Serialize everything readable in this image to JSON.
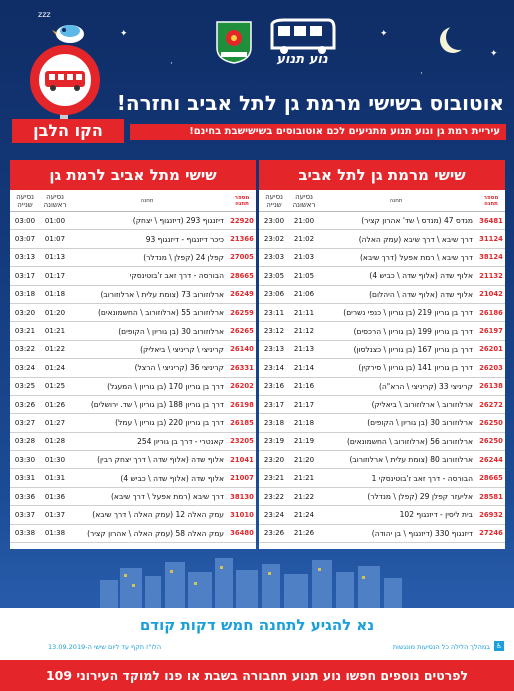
{
  "header": {
    "title": "אוטובוס בשישי מרמת גן לתל אביב וחזרה!",
    "subtitle": "עיריית רמת גן ונוע תנוע מתניעים לכם אוטובוסים בשישישבת בחינם!",
    "line_name": "הקו הלבן",
    "operator_logo_text": "נוע תנוע",
    "icons": [
      "moon-icon",
      "bird-icon",
      "bus-sign-icon",
      "ramat-gan-emblem"
    ]
  },
  "tables": {
    "right": {
      "title": "שישי מרמת גן לתל אביב",
      "col_num": "מספר תחנה",
      "col_stop": "תחנה",
      "col_first": "נסיעה ראשונה",
      "col_second": "נסיעה שנייה",
      "rows": [
        {
          "num": "36481",
          "stop": "מנדס 47 (מנדס \\ שד' אהרון קציר)",
          "t1": "21:00",
          "t2": "23:00"
        },
        {
          "num": "31124",
          "stop": "דרך שיבא \\ דרך שיבא (עמק האלה)",
          "t1": "21:02",
          "t2": "23:02"
        },
        {
          "num": "38124",
          "stop": "דרך שיבא \\ רמת אפעל (דרך שיבא)",
          "t1": "21:03",
          "t2": "23:03"
        },
        {
          "num": "21132",
          "stop": "אלוף שדה (אלוף שדה \\ כביש 4)",
          "t1": "21:05",
          "t2": "23:05"
        },
        {
          "num": "21042",
          "stop": "אלוף שדה (אלוף שדה \\ היהלום)",
          "t1": "21:06",
          "t2": "23:06"
        },
        {
          "num": "26186",
          "stop": "דרך בן גוריון 219 (בן גוריון \\ כנפי נשרים)",
          "t1": "21:11",
          "t2": "23:11"
        },
        {
          "num": "26197",
          "stop": "דרך בן גוריון 199 (בן גוריון \\ הרכסים)",
          "t1": "21:12",
          "t2": "23:12"
        },
        {
          "num": "26201",
          "stop": "דרך בן גוריון 167 (בן גוריון \\ כצנלסון)",
          "t1": "21:13",
          "t2": "23:13"
        },
        {
          "num": "26203",
          "stop": "דרך בן גוריון 141 (בן גוריון \\ סירקין)",
          "t1": "21:14",
          "t2": "23:14"
        },
        {
          "num": "26138",
          "stop": "קריניצי 33 (קריניצי \\ הרא\"ה)",
          "t1": "21:16",
          "t2": "23:16"
        },
        {
          "num": "26272",
          "stop": "ארלוזורוב \\ ארלוזורוב \\ ביאליק)",
          "t1": "21:17",
          "t2": "23:17"
        },
        {
          "num": "26250",
          "stop": "ארלוזורוב 30 (בן גוריון \\ הקופים)",
          "t1": "21:18",
          "t2": "23:18"
        },
        {
          "num": "26250",
          "stop": "ארלוזורוב 56 (ארלוזורוב \\ החשמונאים)",
          "t1": "21:19",
          "t2": "23:19"
        },
        {
          "num": "26244",
          "stop": "ארלוזורוב 80 (צומת עלית \\ ארלוזורוב)",
          "t1": "21:20",
          "t2": "23:20"
        },
        {
          "num": "28665",
          "stop": "הבורסה - דרך זאב ז'בוטינסקי 1",
          "t1": "21:21",
          "t2": "23:21"
        },
        {
          "num": "28581",
          "stop": "אליעזר קפלן 29 (קפלן \\ מנדלר)",
          "t1": "21:22",
          "t2": "23:22"
        },
        {
          "num": "26932",
          "stop": "בית ליסין - דיזנגוף 102",
          "t1": "21:24",
          "t2": "23:24"
        },
        {
          "num": "27246",
          "stop": "דיזנגוף 330 (דיזנגוף \\ בן יהודה)",
          "t1": "21:26",
          "t2": "23:26"
        }
      ]
    },
    "left": {
      "title": "שישי מתל אביב לרמת גן",
      "col_num": "מספר תחנה",
      "col_stop": "תחנה",
      "col_first": "נסיעה ראשונה",
      "col_second": "נסיעה שנייה",
      "rows": [
        {
          "num": "22920",
          "stop": "דיזנגוף 293 (דיזנגוף \\ יצחק)",
          "t1": "01:00",
          "t2": "03:00"
        },
        {
          "num": "21366",
          "stop": "כיכר דיזנגוף - דיזנגוף 93",
          "t1": "01:07",
          "t2": "03:07"
        },
        {
          "num": "27005",
          "stop": "קפלן 24 (קפלן \\ מנדלר)",
          "t1": "01:13",
          "t2": "03:13"
        },
        {
          "num": "28665",
          "stop": "הבורסה - דרך זאב ז'בוטינסקי",
          "t1": "01:17",
          "t2": "03:17"
        },
        {
          "num": "26249",
          "stop": "ארלוזורוב 73 (צומת עלית \\ ארלוזורוב)",
          "t1": "01:18",
          "t2": "03:18"
        },
        {
          "num": "26259",
          "stop": "ארלוזורוב 55 (ארלוזורוב \\ החשמונאים)",
          "t1": "01:20",
          "t2": "03:20"
        },
        {
          "num": "26265",
          "stop": "ארלוזורוב 30 (בן גוריון \\ הקופים)",
          "t1": "01:21",
          "t2": "03:21"
        },
        {
          "num": "26140",
          "stop": "קריניצי \\ קריניצי \\ ביאליק)",
          "t1": "01:22",
          "t2": "03:22"
        },
        {
          "num": "26331",
          "stop": "קריניצי 36 (קריניצי \\ הרצל)",
          "t1": "01:24",
          "t2": "03:24"
        },
        {
          "num": "26202",
          "stop": "דרך בן גוריון 170 (בן גוריון \\ המעגל)",
          "t1": "01:25",
          "t2": "03:25"
        },
        {
          "num": "26198",
          "stop": "דרך בן גוריון 188 (בן גוריון \\ שד. ירושלים)",
          "t1": "01:26",
          "t2": "03:26"
        },
        {
          "num": "26185",
          "stop": "דרך בן גוריון 220 (בן גוריון \\ עמל)",
          "t1": "01:27",
          "t2": "03:27"
        },
        {
          "num": "23205",
          "stop": "קאנטרי - דרך בן גוריון 254",
          "t1": "01:28",
          "t2": "03:28"
        },
        {
          "num": "21041",
          "stop": "אלוף שדה (אלוף שדה \\ דרך יצחק רבין)",
          "t1": "01:30",
          "t2": "03:30"
        },
        {
          "num": "21007",
          "stop": "אלוף שדה (אלוף שדה \\ כביש 4)",
          "t1": "01:31",
          "t2": "03:31"
        },
        {
          "num": "38130",
          "stop": "דרך שיבא (רמת אפעל \\ דרך שיבא)",
          "t1": "01:36",
          "t2": "03:36"
        },
        {
          "num": "31010",
          "stop": "עמק האלה 12 (עמק האלה \\ דרך שיבא)",
          "t1": "01:37",
          "t2": "03:37"
        },
        {
          "num": "36480",
          "stop": "עמק האלה 58 (עמק האלה \\ אהרון קציר)",
          "t1": "01:38",
          "t2": "03:38"
        }
      ]
    }
  },
  "footer": {
    "main": "נא להגיע לתחנה חמש דקות קודם",
    "accessibility": "במהלך הלילה כל הנסיעות מונגשות",
    "valid_from": "הלו\"ז תקף עד ליום שישי ה-13.09.2019",
    "bottom": "לפרטים נוספים חפשו נוע תנוע תחבורה בשבת או פנו למוקד העירוני 109"
  },
  "colors": {
    "accent": "#e4262b",
    "sky": "#143a7c",
    "footer_text": "#1a9fdb"
  }
}
